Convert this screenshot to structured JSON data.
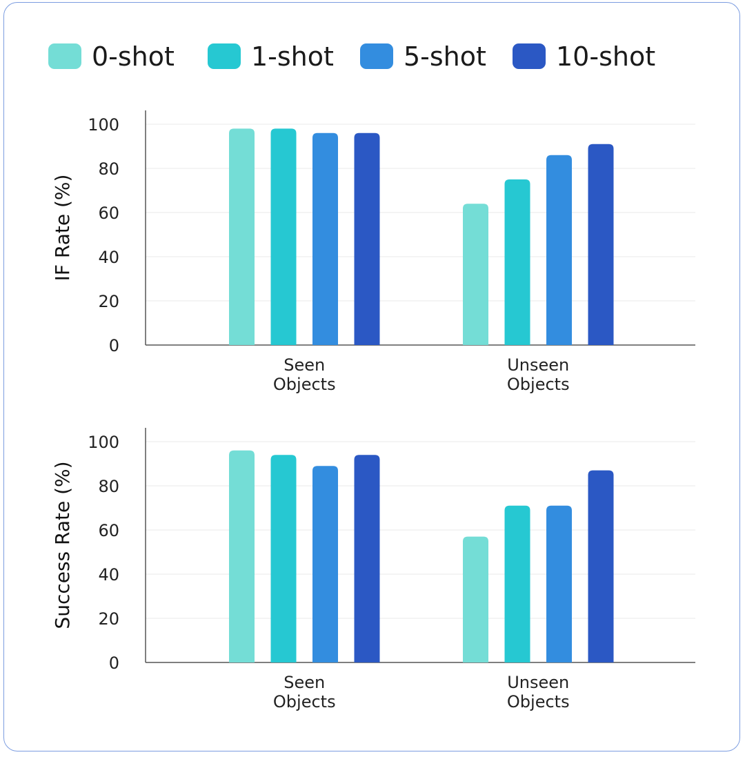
{
  "legend": {
    "items": [
      {
        "label": "0-shot",
        "color": "#74ddd6"
      },
      {
        "label": "1-shot",
        "color": "#26c8d2"
      },
      {
        "label": "5-shot",
        "color": "#338ddf"
      },
      {
        "label": "10-shot",
        "color": "#2b58c4"
      }
    ]
  },
  "chart_data": [
    {
      "type": "bar",
      "ylabel": "IF Rate (%)",
      "xlabel": "",
      "ylim": [
        0,
        100
      ],
      "yticks": [
        0,
        20,
        40,
        60,
        80,
        100
      ],
      "grid": true,
      "legend_position": "top",
      "categories": [
        [
          "Seen",
          "Objects"
        ],
        [
          "Unseen",
          "Objects"
        ]
      ],
      "series": [
        {
          "name": "0-shot",
          "values": [
            98,
            64
          ]
        },
        {
          "name": "1-shot",
          "values": [
            98,
            75
          ]
        },
        {
          "name": "5-shot",
          "values": [
            96,
            86
          ]
        },
        {
          "name": "10-shot",
          "values": [
            96,
            91
          ]
        }
      ]
    },
    {
      "type": "bar",
      "ylabel": "Success Rate (%)",
      "xlabel": "",
      "ylim": [
        0,
        100
      ],
      "yticks": [
        0,
        20,
        40,
        60,
        80,
        100
      ],
      "grid": true,
      "legend_position": "top",
      "categories": [
        [
          "Seen",
          "Objects"
        ],
        [
          "Unseen",
          "Objects"
        ]
      ],
      "series": [
        {
          "name": "0-shot",
          "values": [
            96,
            57
          ]
        },
        {
          "name": "1-shot",
          "values": [
            94,
            71
          ]
        },
        {
          "name": "5-shot",
          "values": [
            89,
            71
          ]
        },
        {
          "name": "10-shot",
          "values": [
            94,
            87
          ]
        }
      ]
    }
  ]
}
